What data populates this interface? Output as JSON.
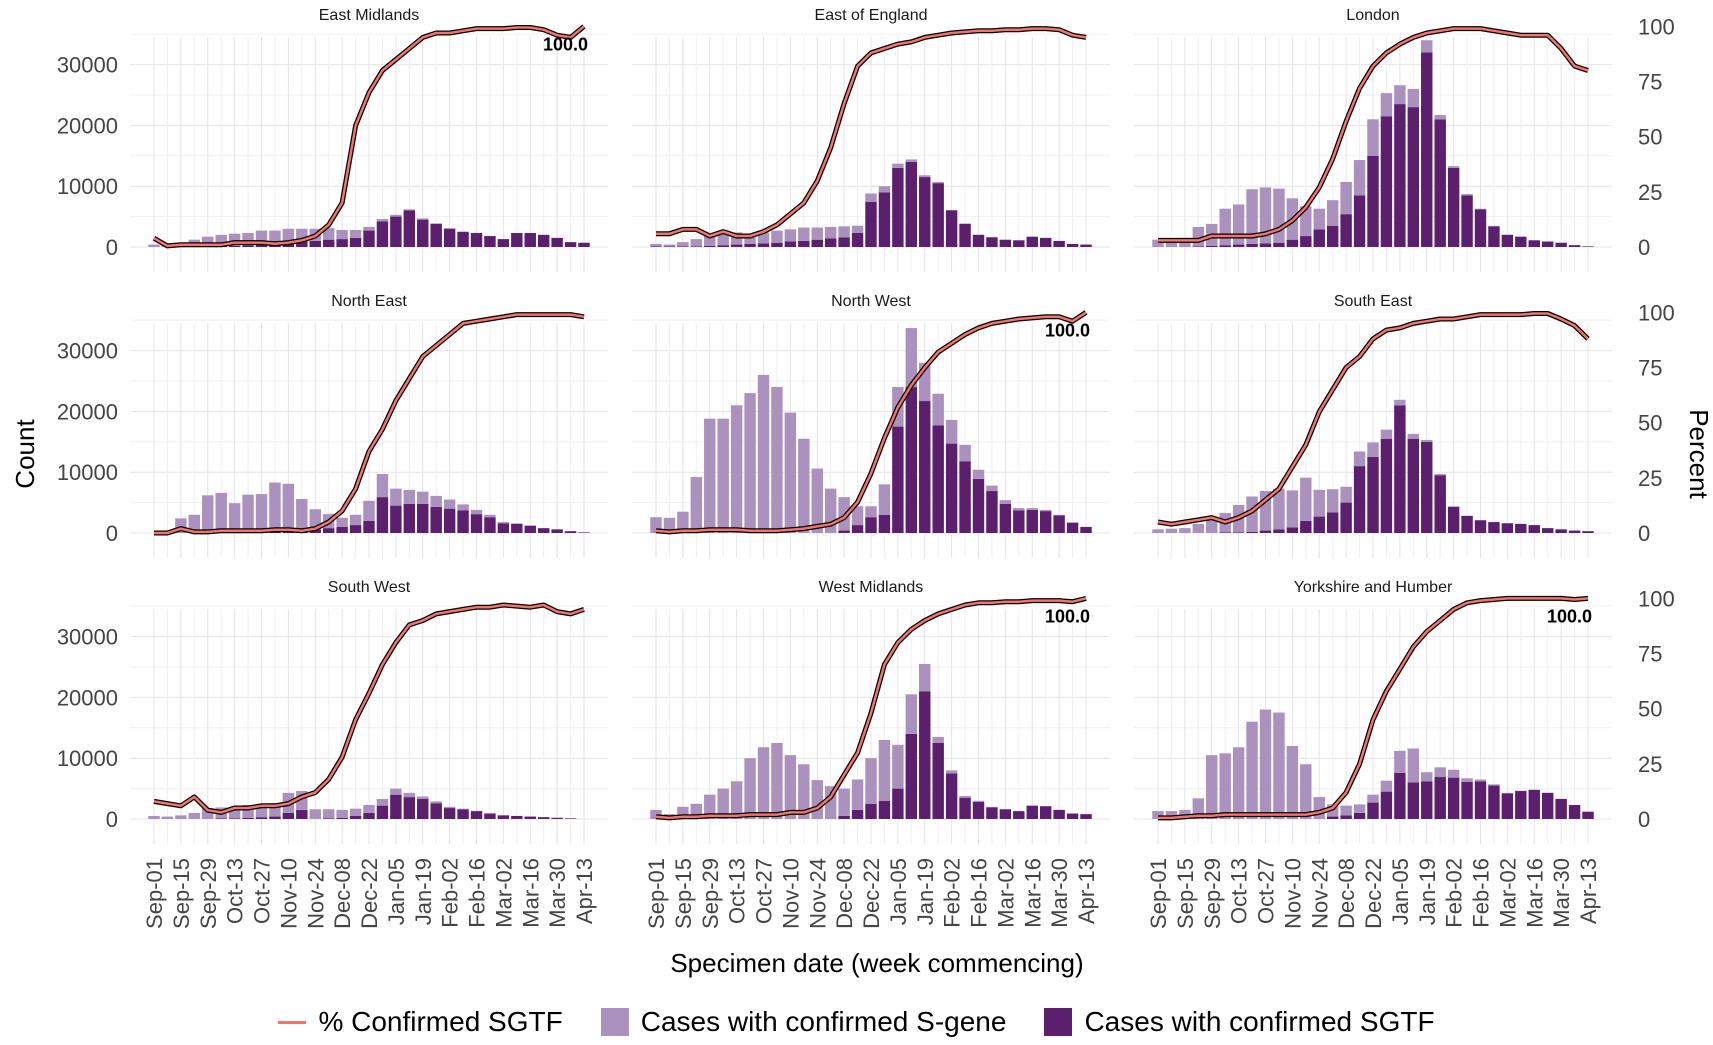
{
  "chart_data": {
    "type": "bar",
    "ylabel": "Count",
    "y2label": "Percent",
    "xlabel": "Specimen date (week commencing)",
    "colors": {
      "sgene": "#ab91be",
      "sgtf": "#5b1f6e",
      "line": "#f4736c",
      "line_outline": "#000000"
    },
    "x_ticks": [
      "Sep-01",
      "Sep-15",
      "Sep-29",
      "Oct-13",
      "Oct-27",
      "Nov-10",
      "Nov-24",
      "Dec-08",
      "Dec-22",
      "Jan-05",
      "Jan-19",
      "Feb-02",
      "Feb-16",
      "Mar-02",
      "Mar-16",
      "Mar-30",
      "Apr-13"
    ],
    "y_ticks": [
      0,
      10000,
      20000,
      30000
    ],
    "y2_ticks": [
      0,
      25,
      50,
      75,
      100
    ],
    "ylim": [
      0,
      37000
    ],
    "y2lim": [
      0,
      102
    ],
    "grid": true,
    "legend_position": "bottom",
    "legend": [
      "% Confirmed SGTF",
      "Cases with confirmed S-gene",
      "Cases with confirmed SGTF"
    ],
    "panels": [
      {
        "title": "East Midlands",
        "sgene": [
          400,
          300,
          700,
          1200,
          1700,
          1900,
          2000,
          2000,
          2200,
          2100,
          2200,
          2100,
          2000,
          1900,
          1500,
          1300,
          600,
          400,
          300,
          200,
          200,
          100,
          100,
          50,
          30,
          20,
          10,
          10,
          0,
          0,
          0,
          0,
          0
        ],
        "sgtf": [
          0,
          0,
          0,
          0,
          0,
          100,
          200,
          300,
          500,
          600,
          800,
          900,
          1000,
          1200,
          1300,
          1500,
          2700,
          4200,
          5000,
          6000,
          4500,
          3800,
          3000,
          2500,
          2300,
          1800,
          1300,
          2300,
          2300,
          2000,
          1500,
          800,
          700
        ],
        "pct": [
          4,
          0.5,
          1,
          1,
          1,
          1,
          2,
          2,
          2,
          1.5,
          2,
          3,
          5,
          10,
          20,
          55,
          70,
          80,
          85,
          90,
          95,
          97,
          97,
          98,
          99,
          99,
          99,
          99.5,
          99.5,
          98.5,
          96,
          95,
          100
        ],
        "label": "100.0"
      },
      {
        "title": "East of England",
        "sgene": [
          400,
          300,
          700,
          1200,
          1700,
          1800,
          2000,
          1700,
          1800,
          2000,
          2000,
          2200,
          2000,
          1900,
          1800,
          1200,
          1400,
          1000,
          700,
          400,
          300,
          200,
          100,
          80,
          50,
          30,
          20,
          10,
          10,
          0,
          0,
          0,
          0
        ],
        "sgtf": [
          100,
          100,
          100,
          100,
          200,
          300,
          400,
          500,
          600,
          700,
          900,
          1000,
          1200,
          1400,
          1600,
          2300,
          7400,
          9000,
          13000,
          14000,
          11500,
          10500,
          6000,
          3800,
          2000,
          1600,
          1200,
          1100,
          1700,
          1500,
          1000,
          500,
          400
        ],
        "pct": [
          6,
          6,
          8,
          8,
          5,
          7,
          5,
          5,
          7,
          10,
          15,
          20,
          30,
          45,
          65,
          82,
          88,
          90,
          92,
          93,
          95,
          96,
          97,
          97.5,
          98,
          98,
          98.5,
          98.5,
          99,
          99,
          98.5,
          96,
          95
        ],
        "label": ""
      },
      {
        "title": "London",
        "sgene": [
          1200,
          1300,
          1500,
          3200,
          3600,
          6000,
          6600,
          9000,
          9200,
          8900,
          6800,
          4900,
          3400,
          4200,
          5300,
          5800,
          6000,
          3800,
          3100,
          3000,
          2000,
          700,
          300,
          200,
          100,
          80,
          50,
          30,
          20,
          10,
          10,
          0,
          0
        ],
        "sgtf": [
          0,
          0,
          0,
          100,
          200,
          300,
          400,
          500,
          600,
          700,
          1200,
          1800,
          2900,
          3500,
          5400,
          8500,
          15000,
          21500,
          23500,
          23000,
          32000,
          21000,
          13000,
          8500,
          6200,
          3400,
          2000,
          1700,
          1100,
          900,
          700,
          300,
          100
        ],
        "pct": [
          3,
          3,
          3,
          3,
          5,
          5,
          5,
          5,
          6,
          8,
          12,
          18,
          27,
          40,
          57,
          72,
          82,
          88,
          92,
          95,
          97,
          98,
          99,
          99,
          99,
          98,
          97,
          96,
          96,
          96,
          90,
          82,
          80
        ],
        "label": ""
      },
      {
        "title": "North East",
        "sgene": [
          0,
          0,
          2400,
          3000,
          6200,
          6500,
          4800,
          6200,
          6200,
          8000,
          7700,
          5100,
          3300,
          2300,
          1500,
          1700,
          3300,
          3800,
          2800,
          2300,
          2000,
          1800,
          1500,
          1000,
          700,
          400,
          200,
          100,
          50,
          30,
          10,
          0,
          0
        ],
        "sgtf": [
          0,
          0,
          0,
          0,
          0,
          100,
          100,
          100,
          200,
          300,
          400,
          500,
          600,
          800,
          1000,
          1300,
          2000,
          5900,
          4500,
          4800,
          4800,
          4300,
          4000,
          3700,
          3100,
          2600,
          1600,
          1500,
          1200,
          800,
          600,
          300,
          100
        ],
        "pct": [
          0,
          0,
          2,
          0.5,
          0.5,
          1,
          1,
          1,
          1,
          1.5,
          1.5,
          1,
          2,
          5,
          10,
          20,
          37,
          47,
          60,
          70,
          80,
          85,
          90,
          95,
          96,
          97,
          98,
          99,
          99,
          99,
          99,
          99,
          98
        ],
        "label": ""
      },
      {
        "title": "North West",
        "sgene": [
          2600,
          2500,
          3500,
          9200,
          18800,
          18800,
          21000,
          23000,
          26000,
          24000,
          19800,
          15500,
          10600,
          7300,
          5500,
          3100,
          1800,
          5000,
          6500,
          9700,
          6300,
          5200,
          3900,
          2700,
          1500,
          900,
          600,
          400,
          300,
          200,
          100,
          50,
          0
        ],
        "sgtf": [
          0,
          0,
          0,
          0,
          0,
          0,
          0,
          0,
          0,
          0,
          0,
          0,
          0,
          0,
          400,
          1300,
          2600,
          3000,
          17500,
          24000,
          21700,
          17700,
          14700,
          11800,
          8900,
          6900,
          4800,
          3700,
          3800,
          3600,
          2900,
          1700,
          1000
        ],
        "pct": [
          1,
          0.5,
          1,
          1,
          1.5,
          1.5,
          1.5,
          1,
          1,
          1,
          1.5,
          2,
          3,
          4,
          7,
          14,
          27,
          43,
          57,
          67,
          75,
          82,
          86,
          90,
          93,
          95,
          96,
          97,
          97.5,
          98,
          98,
          96,
          100
        ],
        "label": "100.0"
      },
      {
        "title": "South East",
        "sgene": [
          600,
          700,
          800,
          1500,
          2200,
          3200,
          4500,
          5800,
          6500,
          6700,
          6100,
          7100,
          4400,
          3800,
          2600,
          2400,
          2400,
          1500,
          900,
          800,
          300,
          200,
          100,
          50,
          30,
          20,
          10,
          10,
          0,
          0,
          0,
          0,
          0
        ],
        "sgtf": [
          0,
          0,
          0,
          0,
          0,
          100,
          100,
          200,
          400,
          600,
          900,
          2000,
          2700,
          3400,
          5000,
          11000,
          12500,
          15500,
          21000,
          15500,
          15000,
          9500,
          4300,
          2800,
          2100,
          1800,
          1600,
          1500,
          1300,
          800,
          600,
          400,
          300
        ],
        "pct": [
          5,
          4,
          5,
          6,
          7,
          5,
          7,
          10,
          15,
          20,
          30,
          40,
          55,
          65,
          75,
          80,
          88,
          92,
          93,
          95,
          96,
          97,
          97,
          98,
          99,
          99,
          99,
          99,
          99.5,
          99.5,
          97,
          94,
          88
        ],
        "label": ""
      },
      {
        "title": "South West",
        "sgene": [
          500,
          400,
          600,
          1000,
          1800,
          1800,
          1900,
          2100,
          2200,
          2200,
          3300,
          3100,
          1600,
          1500,
          1300,
          1200,
          1300,
          1100,
          1000,
          700,
          400,
          300,
          200,
          100,
          50,
          30,
          20,
          10,
          0,
          0,
          0,
          0,
          0
        ],
        "sgtf": [
          0,
          0,
          0,
          0,
          0,
          100,
          100,
          200,
          300,
          400,
          1000,
          1500,
          0,
          100,
          200,
          500,
          1000,
          2200,
          4000,
          3600,
          3300,
          2600,
          1800,
          1600,
          1300,
          900,
          600,
          500,
          400,
          300,
          200,
          100,
          0
        ],
        "pct": [
          8,
          7,
          6,
          10,
          4,
          3,
          5,
          5,
          6,
          6,
          7,
          10,
          12,
          18,
          28,
          45,
          57,
          70,
          80,
          88,
          90,
          93,
          94,
          95,
          96,
          96,
          97,
          96.5,
          96,
          97,
          94,
          93,
          95
        ],
        "label": ""
      },
      {
        "title": "West Midlands",
        "sgene": [
          1500,
          800,
          2000,
          2500,
          4000,
          5000,
          6200,
          10000,
          11800,
          12500,
          10500,
          9000,
          6400,
          5400,
          4500,
          5000,
          7500,
          10000,
          7200,
          6500,
          4500,
          1000,
          500,
          300,
          200,
          100,
          50,
          30,
          20,
          10,
          0,
          0,
          0
        ],
        "sgtf": [
          0,
          0,
          0,
          0,
          0,
          0,
          0,
          0,
          0,
          0,
          0,
          0,
          0,
          0,
          500,
          1500,
          2500,
          3000,
          5000,
          14000,
          21000,
          12500,
          7500,
          3500,
          2800,
          1900,
          1600,
          1300,
          2200,
          2100,
          1500,
          900,
          800
        ],
        "pct": [
          1,
          0.5,
          1,
          1,
          1.5,
          1.5,
          1.5,
          2,
          2,
          2,
          3,
          3,
          5,
          10,
          20,
          30,
          48,
          70,
          80,
          86,
          90,
          93,
          95,
          97,
          98,
          98,
          98.5,
          98.5,
          99,
          99,
          99,
          98.5,
          100
        ],
        "label": "100.0"
      },
      {
        "title": "Yorkshire and Humber",
        "sgene": [
          1300,
          1300,
          1500,
          3400,
          10500,
          10800,
          11800,
          16000,
          18000,
          17500,
          12000,
          9000,
          3600,
          2000,
          1600,
          1400,
          1300,
          1800,
          3600,
          5600,
          1500,
          1600,
          1300,
          600,
          300,
          200,
          100,
          50,
          30,
          20,
          10,
          0,
          0
        ],
        "sgtf": [
          0,
          0,
          0,
          0,
          0,
          0,
          0,
          0,
          0,
          0,
          0,
          0,
          0,
          400,
          600,
          1000,
          2700,
          4500,
          7600,
          6000,
          6200,
          6900,
          6800,
          6100,
          6200,
          5500,
          4200,
          4600,
          4800,
          4300,
          3300,
          2300,
          1200
        ],
        "pct": [
          0.5,
          0.5,
          1,
          1.5,
          1.5,
          2,
          2,
          2,
          2,
          2,
          2,
          2,
          3,
          5,
          12,
          25,
          45,
          58,
          68,
          78,
          85,
          90,
          95,
          98,
          99,
          99.5,
          100,
          100,
          100,
          100,
          100,
          99.5,
          100
        ],
        "label": "100.0"
      }
    ]
  }
}
